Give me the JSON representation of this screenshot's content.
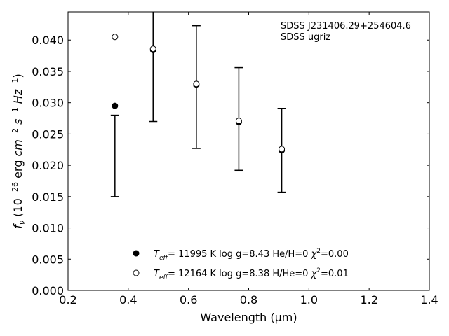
{
  "chart_data": {
    "type": "scatter",
    "xlabel": "Wavelength (μm)",
    "ylabel_parts": {
      "f": "f",
      "nu": "ν",
      "open": " (10",
      "exp1": "−26",
      "mid": " erg ",
      "cm": "cm",
      "exp2": "−2",
      "s": " s",
      "exp3": "−1",
      "hz": " Hz",
      "exp4": "−1",
      "close": ")"
    },
    "xlim": [
      0.2,
      1.4
    ],
    "ylim": [
      0.0,
      0.0445
    ],
    "xticks": [
      {
        "value": 0.2,
        "label": "0.2"
      },
      {
        "value": 0.4,
        "label": "0.4"
      },
      {
        "value": 0.6,
        "label": "0.6"
      },
      {
        "value": 0.8,
        "label": "0.8"
      },
      {
        "value": 1.0,
        "label": "1.0"
      },
      {
        "value": 1.2,
        "label": "1.2"
      },
      {
        "value": 1.4,
        "label": "1.4"
      }
    ],
    "yticks": [
      {
        "value": 0.0,
        "label": "0.000"
      },
      {
        "value": 0.005,
        "label": "0.005"
      },
      {
        "value": 0.01,
        "label": "0.010"
      },
      {
        "value": 0.015,
        "label": "0.015"
      },
      {
        "value": 0.02,
        "label": "0.020"
      },
      {
        "value": 0.025,
        "label": "0.025"
      },
      {
        "value": 0.03,
        "label": "0.030"
      },
      {
        "value": 0.035,
        "label": "0.035"
      },
      {
        "value": 0.04,
        "label": "0.040"
      }
    ],
    "annotation_lines": [
      "SDSS J231406.29+254604.6",
      "SDSS ugriz"
    ],
    "observed": [
      {
        "x": 0.3557,
        "y": 0.0215,
        "yerr": 0.0065
      },
      {
        "x": 0.4825,
        "y": 0.0385,
        "yerr": 0.0115
      },
      {
        "x": 0.6261,
        "y": 0.0325,
        "yerr": 0.0098
      },
      {
        "x": 0.7672,
        "y": 0.0274,
        "yerr": 0.0082
      },
      {
        "x": 0.9097,
        "y": 0.0224,
        "yerr": 0.0067
      }
    ],
    "series": [
      {
        "marker": "filled",
        "legend": {
          "t": "T",
          "sub": "eff",
          "rest": "= 11995 K  log g=8.43  He/H=0  ",
          "chi": "χ",
          "sup": "2",
          "tail": "=0.00"
        },
        "points": [
          {
            "x": 0.3557,
            "y": 0.0295
          },
          {
            "x": 0.4825,
            "y": 0.0384
          },
          {
            "x": 0.6261,
            "y": 0.0328
          },
          {
            "x": 0.7672,
            "y": 0.0269
          },
          {
            "x": 0.9097,
            "y": 0.0224
          }
        ]
      },
      {
        "marker": "open",
        "legend": {
          "t": "T",
          "sub": "eff",
          "rest": "= 12164 K  log g=8.38  H/He=0  ",
          "chi": "χ",
          "sup": "2",
          "tail": "=0.01"
        },
        "points": [
          {
            "x": 0.3557,
            "y": 0.0405
          },
          {
            "x": 0.4825,
            "y": 0.0386
          },
          {
            "x": 0.6261,
            "y": 0.033
          },
          {
            "x": 0.7672,
            "y": 0.0271
          },
          {
            "x": 0.9097,
            "y": 0.0226
          }
        ]
      }
    ]
  }
}
